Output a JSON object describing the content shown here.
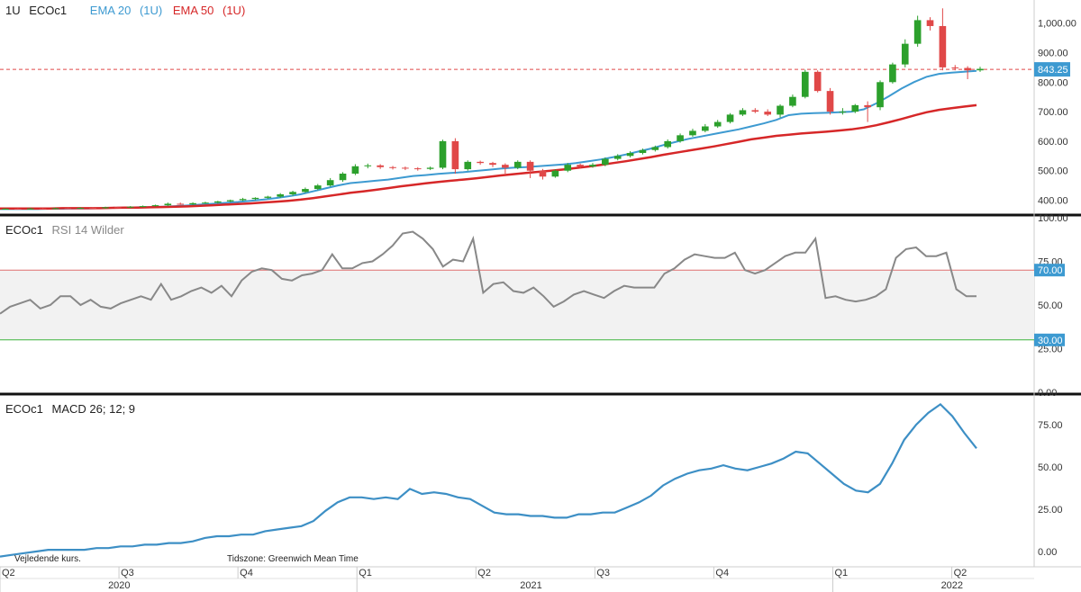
{
  "header": {
    "interval": "1U",
    "symbol": "ECOc1",
    "ema20_label": "EMA 20",
    "ema20_interval": "(1U)",
    "ema50_label": "EMA 50",
    "ema50_interval": "(1U)"
  },
  "rsi_header": {
    "symbol": "ECOc1",
    "label": "RSI 14 Wilder"
  },
  "macd_header": {
    "symbol": "ECOc1",
    "label": "MACD 26; 12; 9"
  },
  "footer": {
    "note": "Vejledende kurs.",
    "timezone": "Tidszone: Greenwich Mean Time"
  },
  "colors": {
    "up": "#2ca02c",
    "down": "#e04848",
    "ema20": "#3d9ad1",
    "ema50": "#d62728",
    "rsi": "#888888",
    "macd": "#3d8fc5",
    "price_badge": "#3d9ad1"
  },
  "chart_data": [
    {
      "type": "candlestick",
      "name": "price",
      "ylim": [
        365,
        1060
      ],
      "y_ticks": [
        400,
        500,
        600,
        700,
        800,
        900,
        1000
      ],
      "y_tick_labels": [
        "400.00",
        "500.00",
        "600.00",
        "700.00",
        "800.00",
        "900.00",
        "1,000.00"
      ],
      "last_price": 843.25,
      "last_price_label": "843.25",
      "series": [
        {
          "name": "EMA 20",
          "values": [
            370,
            370,
            370,
            370,
            371,
            371,
            372,
            372,
            373,
            374,
            375,
            376,
            377,
            378,
            380,
            382,
            385,
            388,
            391,
            394,
            398,
            402,
            407,
            413,
            420,
            430,
            440,
            450,
            458,
            462,
            466,
            470,
            476,
            482,
            485,
            489,
            492,
            495,
            499,
            503,
            507,
            510,
            512,
            515,
            518,
            521,
            526,
            532,
            538,
            546,
            555,
            565,
            575,
            587,
            598,
            608,
            616,
            624,
            632,
            640,
            650,
            660,
            672,
            688,
            693,
            695,
            696,
            698,
            700,
            708,
            728,
            752,
            778,
            800,
            818,
            828,
            832,
            835,
            838
          ]
        },
        {
          "name": "EMA 50",
          "values": [
            372,
            372,
            372,
            372,
            372,
            373,
            373,
            373,
            373,
            374,
            375,
            375,
            376,
            377,
            378,
            379,
            381,
            383,
            385,
            387,
            389,
            392,
            395,
            398,
            402,
            407,
            413,
            419,
            425,
            430,
            435,
            441,
            447,
            452,
            457,
            462,
            466,
            470,
            474,
            479,
            484,
            488,
            492,
            496,
            500,
            504,
            509,
            514,
            520,
            526,
            532,
            539,
            546,
            554,
            561,
            568,
            575,
            582,
            590,
            598,
            606,
            612,
            618,
            622,
            626,
            629,
            632,
            636,
            640,
            646,
            654,
            664,
            675,
            687,
            698,
            706,
            712,
            717,
            722
          ]
        }
      ],
      "candles": [
        [
          370,
          371,
          368,
          373
        ],
        [
          371,
          370,
          368,
          373
        ],
        [
          370,
          372,
          368,
          374
        ],
        [
          372,
          371,
          369,
          374
        ],
        [
          371,
          373,
          369,
          375
        ],
        [
          373,
          372,
          370,
          375
        ],
        [
          372,
          374,
          370,
          376
        ],
        [
          374,
          373,
          371,
          376
        ],
        [
          373,
          376,
          371,
          378
        ],
        [
          376,
          375,
          373,
          378
        ],
        [
          375,
          378,
          373,
          380
        ],
        [
          378,
          380,
          376,
          382
        ],
        [
          380,
          383,
          378,
          385
        ],
        [
          383,
          388,
          380,
          392
        ],
        [
          388,
          386,
          384,
          392
        ],
        [
          386,
          390,
          384,
          393
        ],
        [
          390,
          392,
          388,
          395
        ],
        [
          392,
          396,
          389,
          398
        ],
        [
          396,
          400,
          393,
          402
        ],
        [
          400,
          404,
          397,
          408
        ],
        [
          404,
          408,
          400,
          410
        ],
        [
          408,
          412,
          405,
          415
        ],
        [
          412,
          420,
          408,
          424
        ],
        [
          420,
          428,
          415,
          432
        ],
        [
          428,
          438,
          425,
          443
        ],
        [
          438,
          450,
          434,
          455
        ],
        [
          450,
          468,
          446,
          475
        ],
        [
          468,
          490,
          462,
          495
        ],
        [
          490,
          515,
          485,
          522
        ],
        [
          515,
          518,
          508,
          524
        ],
        [
          518,
          512,
          506,
          522
        ],
        [
          512,
          510,
          504,
          516
        ],
        [
          510,
          508,
          502,
          514
        ],
        [
          508,
          506,
          500,
          512
        ],
        [
          506,
          510,
          502,
          514
        ],
        [
          510,
          600,
          505,
          605
        ],
        [
          600,
          505,
          490,
          610
        ],
        [
          505,
          530,
          500,
          535
        ],
        [
          530,
          526,
          520,
          534
        ],
        [
          526,
          520,
          512,
          530
        ],
        [
          520,
          510,
          490,
          525
        ],
        [
          510,
          530,
          505,
          535
        ],
        [
          530,
          500,
          475,
          535
        ],
        [
          500,
          480,
          470,
          506
        ],
        [
          480,
          500,
          476,
          505
        ],
        [
          500,
          520,
          495,
          526
        ],
        [
          520,
          514,
          508,
          524
        ],
        [
          514,
          520,
          510,
          526
        ],
        [
          520,
          540,
          515,
          545
        ],
        [
          540,
          550,
          535,
          556
        ],
        [
          550,
          560,
          545,
          566
        ],
        [
          560,
          570,
          555,
          575
        ],
        [
          570,
          580,
          565,
          585
        ],
        [
          580,
          600,
          575,
          606
        ],
        [
          600,
          620,
          595,
          626
        ],
        [
          620,
          635,
          615,
          642
        ],
        [
          635,
          650,
          630,
          658
        ],
        [
          650,
          665,
          645,
          672
        ],
        [
          665,
          690,
          660,
          695
        ],
        [
          690,
          705,
          685,
          712
        ],
        [
          705,
          700,
          695,
          712
        ],
        [
          700,
          690,
          685,
          708
        ],
        [
          690,
          720,
          680,
          725
        ],
        [
          720,
          750,
          715,
          758
        ],
        [
          750,
          835,
          745,
          842
        ],
        [
          835,
          770,
          765,
          840
        ],
        [
          770,
          700,
          690,
          780
        ],
        [
          700,
          700,
          690,
          712
        ],
        [
          700,
          722,
          695,
          726
        ],
        [
          722,
          715,
          665,
          735
        ],
        [
          715,
          800,
          705,
          806
        ],
        [
          800,
          860,
          795,
          866
        ],
        [
          860,
          930,
          850,
          945
        ],
        [
          930,
          1010,
          920,
          1025
        ],
        [
          1010,
          990,
          975,
          1020
        ],
        [
          990,
          850,
          840,
          1050
        ],
        [
          850,
          848,
          840,
          858
        ],
        [
          848,
          840,
          810,
          854
        ],
        [
          840,
          845,
          835,
          852
        ]
      ],
      "candle_dirs_note": "",
      "ref_line": 843.25
    },
    {
      "type": "line",
      "name": "RSI 14 Wilder",
      "ylim": [
        0,
        100
      ],
      "y_ticks": [
        0,
        25,
        50,
        75,
        100
      ],
      "y_tick_labels": [
        "0.00",
        "25.00",
        "50.00",
        "75.00",
        "100.00"
      ],
      "levels": [
        70,
        30
      ],
      "level_labels": [
        "70.00",
        "30.00"
      ],
      "values": [
        45,
        49,
        51,
        53,
        48,
        50,
        55,
        55,
        50,
        53,
        49,
        48,
        51,
        53,
        55,
        53,
        62,
        53,
        55,
        58,
        60,
        57,
        61,
        55,
        64,
        69,
        71,
        70,
        65,
        64,
        67,
        68,
        70,
        79,
        71,
        71,
        74,
        75,
        79,
        84,
        91,
        92,
        88,
        82,
        72,
        76,
        75,
        88,
        57,
        62,
        63,
        58,
        57,
        60,
        55,
        49,
        52,
        56,
        58,
        56,
        54,
        58,
        61,
        60,
        60,
        60,
        68,
        71,
        76,
        79,
        78,
        77,
        77,
        80,
        70,
        68,
        70,
        74,
        78,
        80,
        80,
        88,
        54,
        55,
        53,
        52,
        53,
        55,
        59,
        77,
        82,
        83,
        78,
        78,
        80,
        59,
        55,
        55
      ]
    },
    {
      "type": "line",
      "name": "MACD 26; 12; 9",
      "ylim": [
        -8,
        92
      ],
      "y_ticks": [
        0,
        25,
        50,
        75
      ],
      "y_tick_labels": [
        "0.00",
        "25.00",
        "50.00",
        "75.00"
      ],
      "values": [
        -3,
        -2,
        -1,
        0,
        1,
        1,
        1,
        1,
        2,
        2,
        3,
        3,
        4,
        4,
        5,
        5,
        6,
        8,
        9,
        9,
        10,
        10,
        12,
        13,
        14,
        15,
        18,
        24,
        29,
        32,
        32,
        31,
        32,
        31,
        37,
        34,
        35,
        34,
        32,
        31,
        27,
        23,
        22,
        22,
        21,
        21,
        20,
        20,
        22,
        22,
        23,
        23,
        26,
        29,
        33,
        39,
        43,
        46,
        48,
        49,
        51,
        49,
        48,
        50,
        52,
        55,
        59,
        58,
        52,
        46,
        40,
        36,
        35,
        40,
        52,
        66,
        75,
        82,
        87,
        80,
        70,
        61
      ]
    }
  ],
  "time_axis": {
    "quarters": [
      {
        "label": "Q2",
        "x": 0
      },
      {
        "label": "Q3",
        "x": 13
      },
      {
        "label": "Q4",
        "x": 26
      },
      {
        "label": "Q1",
        "x": 39
      },
      {
        "label": "Q2",
        "x": 52
      },
      {
        "label": "Q3",
        "x": 65
      },
      {
        "label": "Q4",
        "x": 78
      },
      {
        "label": "Q1",
        "x": 91
      },
      {
        "label": "Q2",
        "x": 104
      }
    ],
    "years": [
      {
        "label": "2020",
        "x": 13
      },
      {
        "label": "2021",
        "x": 58
      },
      {
        "label": "2022",
        "x": 104
      }
    ],
    "x_max": 113
  }
}
